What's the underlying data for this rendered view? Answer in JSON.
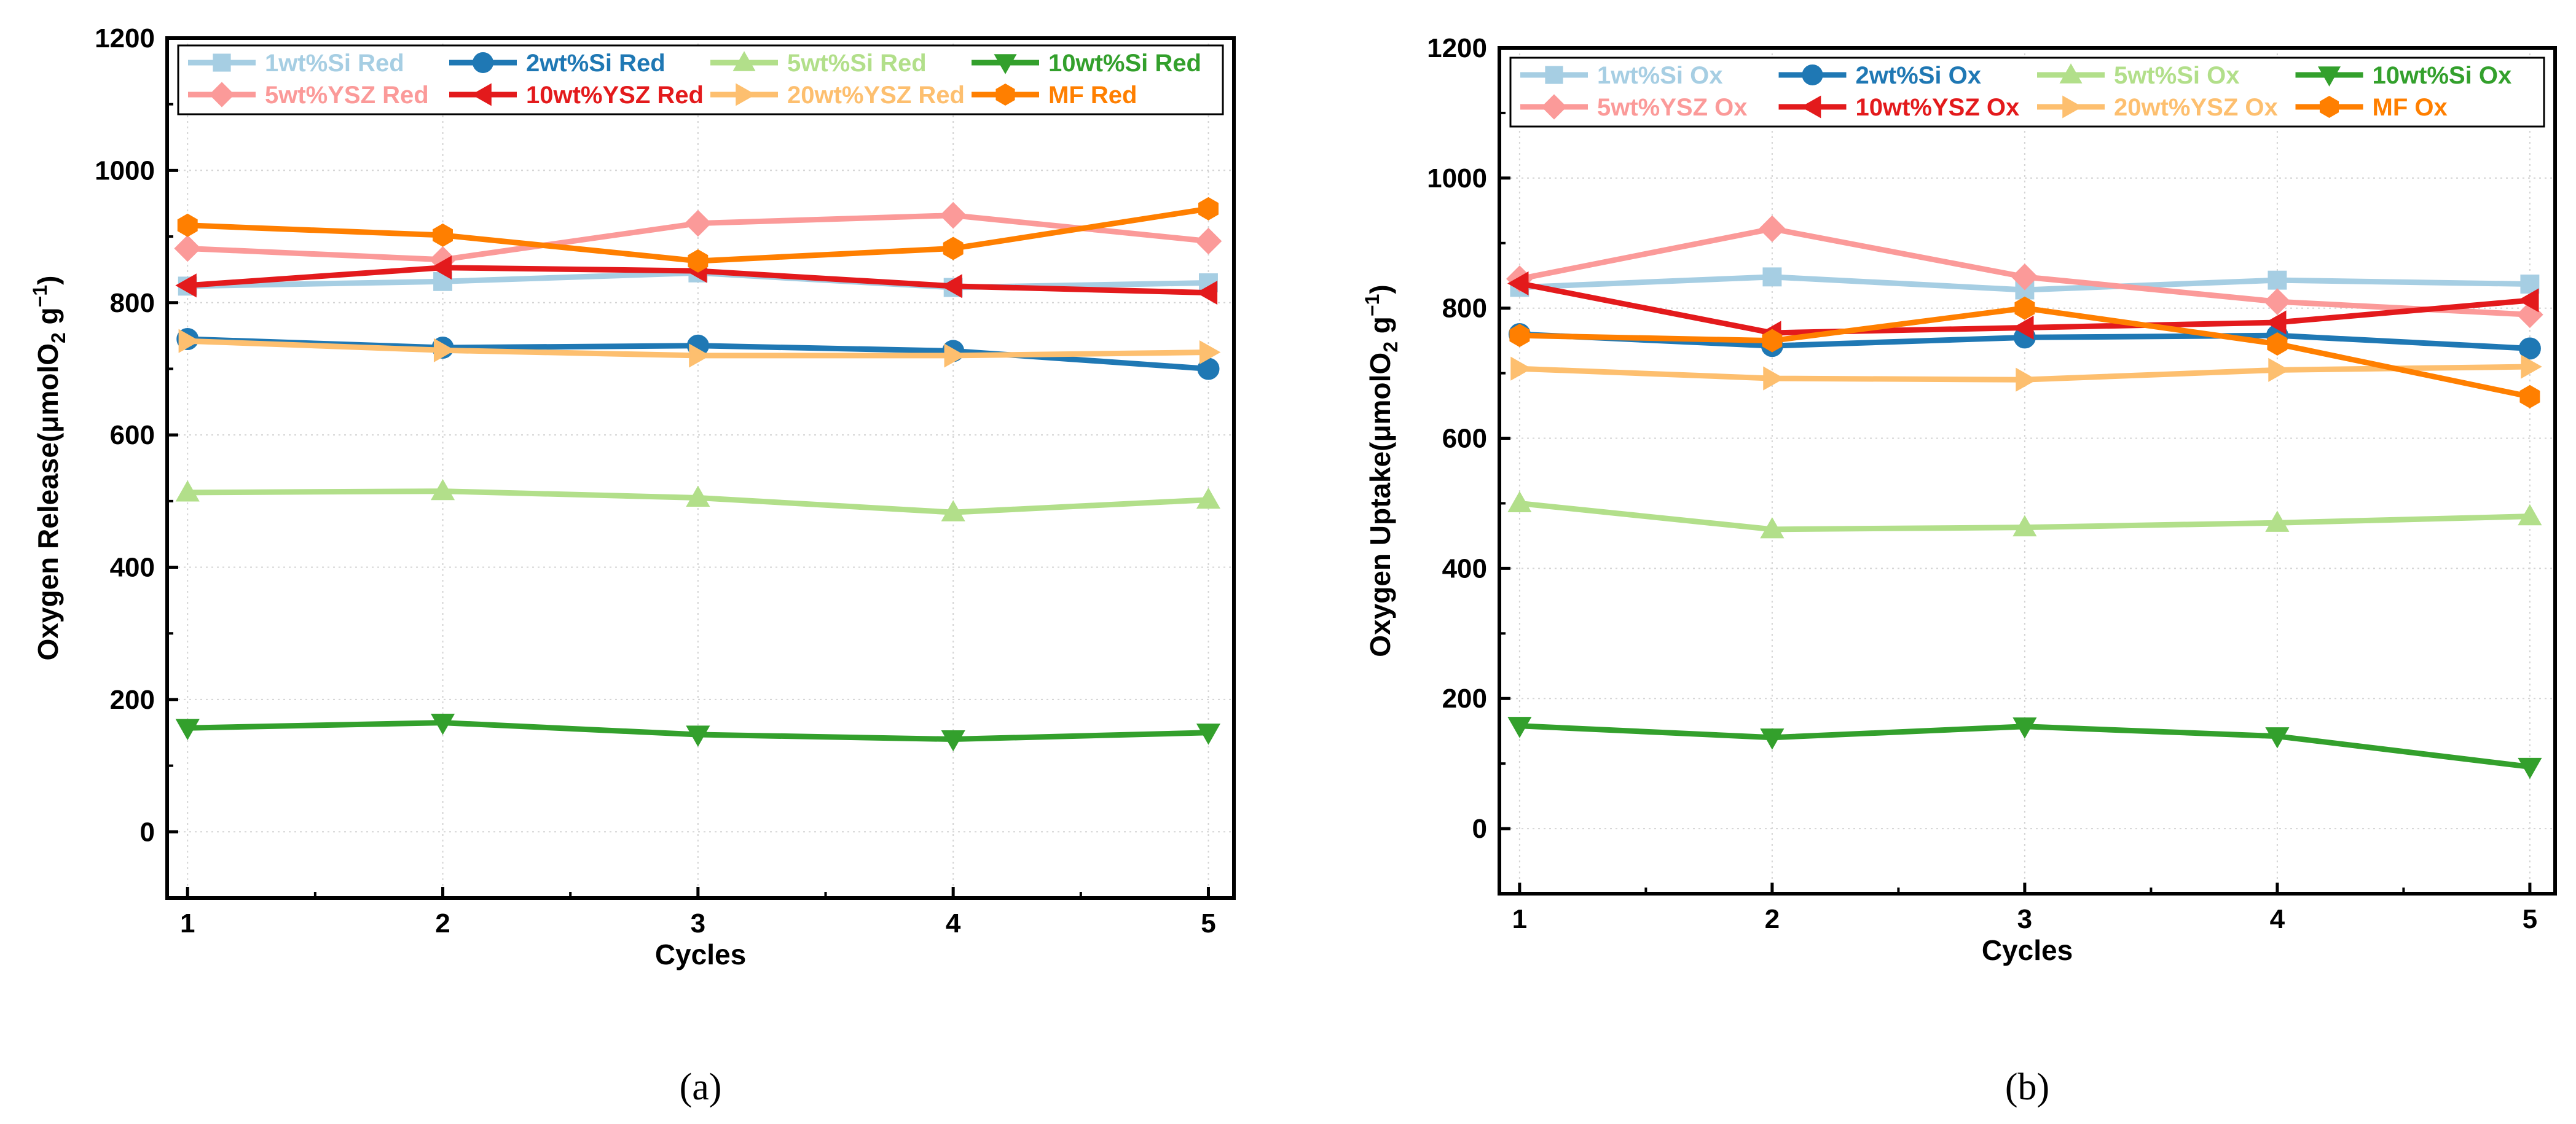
{
  "chart_data": [
    {
      "panel": "a",
      "caption": "(a)",
      "type": "line",
      "x": [
        1,
        2,
        3,
        4,
        5
      ],
      "x_ticks": [
        "1",
        "2",
        "3",
        "4",
        "5"
      ],
      "xlabel": "Cycles",
      "ylabel_main": "Oxygen Release(μmolO",
      "ylabel_sub": "2",
      "ylabel_unit": " g",
      "ylabel_sup": "−1",
      "ylabel_close": ")",
      "ylim": [
        -100,
        1200
      ],
      "y_ticks": [
        0,
        200,
        400,
        600,
        800,
        1000,
        1200
      ],
      "xlim": [
        0.92,
        5.1
      ],
      "legend_position": "top",
      "series": [
        {
          "name": "1wt%Si Red",
          "color": "#a6cee3",
          "marker": "square",
          "values": [
            825,
            832,
            845,
            823,
            830
          ]
        },
        {
          "name": "2wt%Si Red",
          "color": "#1f78b4",
          "marker": "circle",
          "values": [
            745,
            732,
            735,
            727,
            700
          ]
        },
        {
          "name": "5wt%Si Red",
          "color": "#b2df8a",
          "marker": "triangle-up",
          "values": [
            513,
            515,
            505,
            483,
            502
          ]
        },
        {
          "name": "10wt%Si Red",
          "color": "#33a02c",
          "marker": "triangle-down",
          "values": [
            157,
            165,
            147,
            140,
            150
          ]
        },
        {
          "name": "5wt%YSZ Red",
          "color": "#fb9a99",
          "marker": "diamond",
          "values": [
            882,
            865,
            920,
            932,
            893
          ]
        },
        {
          "name": "10wt%YSZ Red",
          "color": "#e31a1c",
          "marker": "triangle-left",
          "values": [
            826,
            853,
            848,
            825,
            815
          ]
        },
        {
          "name": "20wt%YSZ Red",
          "color": "#fdbf6f",
          "marker": "triangle-right",
          "values": [
            742,
            728,
            720,
            720,
            725
          ]
        },
        {
          "name": "MF Red",
          "color": "#ff7f00",
          "marker": "hexagon",
          "values": [
            917,
            902,
            863,
            882,
            942
          ]
        }
      ]
    },
    {
      "panel": "b",
      "caption": "(b)",
      "type": "line",
      "x": [
        1,
        2,
        3,
        4,
        5
      ],
      "x_ticks": [
        "1",
        "2",
        "3",
        "4",
        "5"
      ],
      "xlabel": "Cycles",
      "ylabel_main": "Oxygen Uptake(μmolO",
      "ylabel_sub": "2",
      "ylabel_unit": " g",
      "ylabel_sup": "−1",
      "ylabel_close": ")",
      "ylim": [
        -100,
        1200
      ],
      "y_ticks": [
        0,
        200,
        400,
        600,
        800,
        1000,
        1200
      ],
      "xlim": [
        0.92,
        5.1
      ],
      "legend_position": "top",
      "series": [
        {
          "name": "1wt%Si Ox",
          "color": "#a6cee3",
          "marker": "square",
          "values": [
            832,
            848,
            828,
            843,
            837
          ]
        },
        {
          "name": "2wt%Si Ox",
          "color": "#1f78b4",
          "marker": "circle",
          "values": [
            760,
            742,
            755,
            758,
            738
          ]
        },
        {
          "name": "5wt%Si Ox",
          "color": "#b2df8a",
          "marker": "triangle-up",
          "values": [
            500,
            460,
            463,
            470,
            480
          ]
        },
        {
          "name": "10wt%Si Ox",
          "color": "#33a02c",
          "marker": "triangle-down",
          "values": [
            158,
            140,
            157,
            142,
            95
          ]
        },
        {
          "name": "5wt%YSZ Ox",
          "color": "#fb9a99",
          "marker": "diamond",
          "values": [
            845,
            922,
            848,
            810,
            790
          ]
        },
        {
          "name": "10wt%YSZ Ox",
          "color": "#e31a1c",
          "marker": "triangle-left",
          "values": [
            838,
            762,
            770,
            778,
            812
          ]
        },
        {
          "name": "20wt%YSZ Ox",
          "color": "#fdbf6f",
          "marker": "triangle-right",
          "values": [
            707,
            692,
            690,
            705,
            710
          ]
        },
        {
          "name": "MF Ox",
          "color": "#ff7f00",
          "marker": "hexagon",
          "values": [
            758,
            750,
            800,
            745,
            664
          ]
        }
      ]
    }
  ]
}
